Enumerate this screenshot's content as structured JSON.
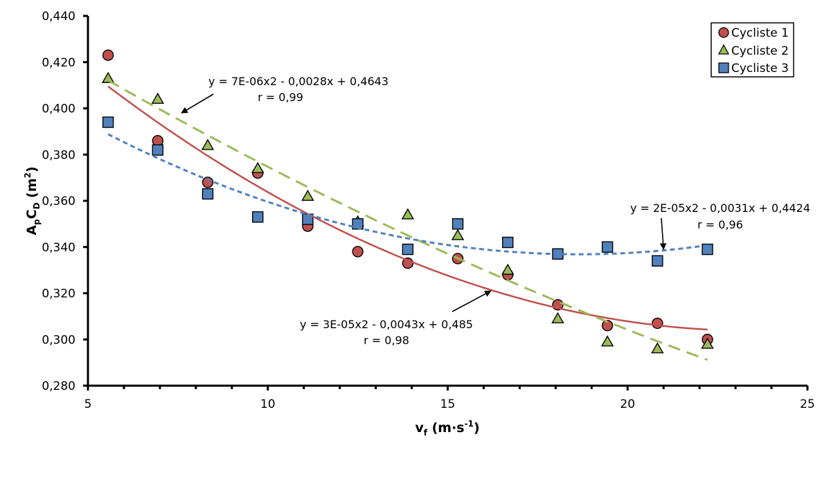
{
  "chart_data": {
    "type": "scatter",
    "title": "",
    "xlabel": {
      "main": "v",
      "sub": "f",
      "unit": " (m·s",
      "sup": "-1",
      "close": ")"
    },
    "ylabel": {
      "a": "A",
      "a_sub": "p",
      "c": "C",
      "c_sub": "D",
      "unit": " (m",
      "sup": "2",
      "close": ")"
    },
    "xlim": [
      5,
      25
    ],
    "ylim": [
      0.28,
      0.44
    ],
    "x_ticks": [
      5,
      10,
      15,
      20,
      25
    ],
    "x_tick_labels": [
      "5",
      "10",
      "15",
      "20",
      "25"
    ],
    "x_minor_step": 1,
    "y_ticks": [
      0.28,
      0.3,
      0.32,
      0.34,
      0.36,
      0.38,
      0.4,
      0.42,
      0.44
    ],
    "y_tick_labels": [
      "0,280",
      "0,300",
      "0,320",
      "0,340",
      "0,360",
      "0,380",
      "0,400",
      "0,420",
      "0,440"
    ],
    "grid": false,
    "legend_position": "top-right",
    "x": [
      5.56,
      6.94,
      8.33,
      9.72,
      11.11,
      12.5,
      13.89,
      15.28,
      16.67,
      18.06,
      19.44,
      20.83,
      22.22
    ],
    "series": [
      {
        "name": "Cycliste 1",
        "marker": "circle",
        "color": "#c0504d",
        "values": [
          0.423,
          0.386,
          0.368,
          0.372,
          0.349,
          0.338,
          0.333,
          0.335,
          0.328,
          0.315,
          0.306,
          0.307,
          0.3
        ],
        "trend": {
          "a": 3e-05,
          "b": -0.0043,
          "c": 0.485,
          "style": "solid",
          "equation": "y = 3E-05x2 - 0,0043x + 0,485",
          "r": "r = 0,98"
        }
      },
      {
        "name": "Cycliste 2",
        "marker": "triangle",
        "color": "#9bbb59",
        "values": [
          0.413,
          0.404,
          0.384,
          0.374,
          0.362,
          0.351,
          0.354,
          0.345,
          0.33,
          0.309,
          0.299,
          0.296,
          0.298
        ],
        "trend": {
          "a": 7e-06,
          "b": -0.0028,
          "c": 0.4643,
          "style": "long-dash",
          "equation": "y = 7E-06x2 - 0,0028x + 0,4643",
          "r": "r = 0,99"
        }
      },
      {
        "name": "Cycliste 3",
        "marker": "square",
        "color": "#4f81bd",
        "values": [
          0.394,
          0.382,
          0.363,
          0.353,
          0.352,
          0.35,
          0.339,
          0.35,
          0.342,
          0.337,
          0.34,
          0.334,
          0.339
        ],
        "trend": {
          "a": 2e-05,
          "b": -0.0031,
          "c": 0.4424,
          "style": "short-dash",
          "equation": "y = 2E-05x2 - 0,0031x + 0,4424",
          "r": "r = 0,96"
        }
      }
    ],
    "annotations": [
      {
        "series": "Cycliste 2",
        "arrow_to_x": 7.6,
        "arrow_to_y": 0.398
      },
      {
        "series": "Cycliste 1",
        "arrow_to_x": 16.2,
        "arrow_to_y": 0.321
      },
      {
        "series": "Cycliste 3",
        "arrow_to_x": 21.0,
        "arrow_to_y": 0.339
      }
    ]
  }
}
